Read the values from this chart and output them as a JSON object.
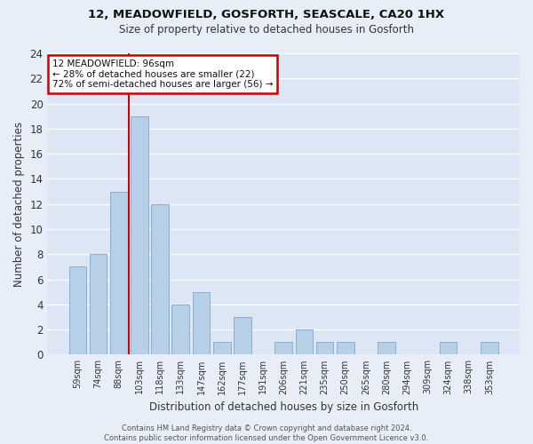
{
  "title1": "12, MEADOWFIELD, GOSFORTH, SEASCALE, CA20 1HX",
  "title2": "Size of property relative to detached houses in Gosforth",
  "xlabel": "Distribution of detached houses by size in Gosforth",
  "ylabel": "Number of detached properties",
  "categories": [
    "59sqm",
    "74sqm",
    "88sqm",
    "103sqm",
    "118sqm",
    "133sqm",
    "147sqm",
    "162sqm",
    "177sqm",
    "191sqm",
    "206sqm",
    "221sqm",
    "235sqm",
    "250sqm",
    "265sqm",
    "280sqm",
    "294sqm",
    "309sqm",
    "324sqm",
    "338sqm",
    "353sqm"
  ],
  "values": [
    7,
    8,
    13,
    19,
    12,
    4,
    5,
    1,
    3,
    0,
    1,
    2,
    1,
    1,
    0,
    1,
    0,
    0,
    1,
    0,
    1
  ],
  "bar_color": "#b8cfe8",
  "bar_edge_color": "#8aafd4",
  "bg_color": "#dce6f5",
  "grid_color": "#ffffff",
  "fig_color": "#e8eef8",
  "vline_color": "#cc0000",
  "vline_x_index": 2,
  "annotation_text": "12 MEADOWFIELD: 96sqm\n← 28% of detached houses are smaller (22)\n72% of semi-detached houses are larger (56) →",
  "annotation_box_color": "#cc0000",
  "ylim": [
    0,
    24
  ],
  "yticks": [
    0,
    2,
    4,
    6,
    8,
    10,
    12,
    14,
    16,
    18,
    20,
    22,
    24
  ],
  "footer": "Contains HM Land Registry data © Crown copyright and database right 2024.\nContains public sector information licensed under the Open Government Licence v3.0."
}
